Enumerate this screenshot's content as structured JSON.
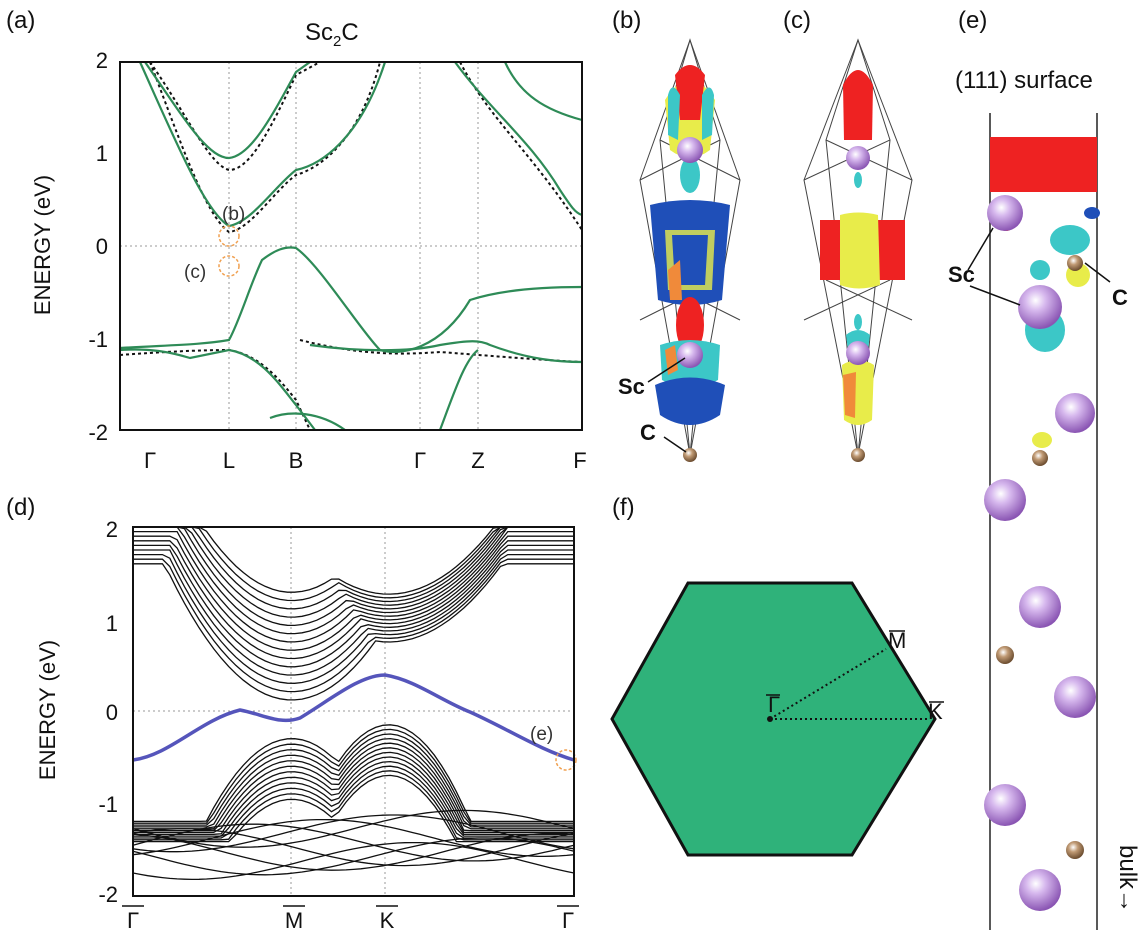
{
  "figure": {
    "panel_labels": [
      "(a)",
      "(b)",
      "(c)",
      "(d)",
      "(e)",
      "(f)"
    ]
  },
  "panel_a": {
    "title_main": "Sc",
    "title_sub": "2",
    "title_end": "C",
    "ylabel": "ENERGY (eV)",
    "yticks": [
      "2",
      "1",
      "0",
      "-1",
      "-2"
    ],
    "xticks": [
      "Γ",
      "L",
      "B",
      "Γ",
      "Z",
      "F"
    ],
    "annotation_b": "(b)",
    "annotation_c": "(c)"
  },
  "panel_b": {
    "atom_sc": "Sc",
    "atom_c": "C"
  },
  "panel_d": {
    "ylabel": "ENERGY (eV)",
    "yticks": [
      "2",
      "1",
      "0",
      "-1",
      "-2"
    ],
    "xticks": [
      "Γ",
      "M",
      "K",
      "Γ"
    ],
    "annotation_e": "(e)"
  },
  "panel_e": {
    "title": "(111) surface",
    "atom_sc": "Sc",
    "atom_c": "C",
    "bulk_label": "bulk→"
  },
  "panel_f": {
    "points": [
      "Γ",
      "M",
      "K"
    ]
  },
  "colors": {
    "green_band": "#2e8b57",
    "surface_band": "#5555bb",
    "bz_fill": "#2fb27a",
    "sc_atom": "#b58ad6",
    "c_atom": "#9a7350",
    "iso_red": "#ee2222",
    "iso_blue": "#1f4fb8",
    "iso_cyan": "#3cc7c7",
    "iso_yellow": "#e8ec4a"
  },
  "chart_data": [
    {
      "type": "line",
      "panel": "a",
      "title": "Sc2C",
      "ylabel": "ENERGY (eV)",
      "ylim": [
        -2,
        2
      ],
      "x_ticks": [
        "Γ",
        "L",
        "B",
        "Γ",
        "Z",
        "F"
      ],
      "x": [
        0,
        1,
        2,
        3,
        4,
        5,
        6,
        7,
        8,
        9,
        10
      ],
      "series": [
        {
          "values": [
            1.9,
            1.2,
            0.95,
            1.3,
            1.9,
            2.0,
            2.0,
            2.0,
            1.9,
            1.1,
            0.3
          ]
        },
        {
          "values": [
            1.1,
            0.45,
            0.15,
            0.55,
            0.8,
            1.2,
            1.9,
            2.0,
            2.0,
            1.4,
            1.3
          ]
        },
        {
          "values": [
            -1.15,
            -0.9,
            -0.18,
            -0.02,
            -0.8,
            -1.15,
            -1.15,
            -1.1,
            -0.8,
            -0.5,
            -0.45
          ]
        },
        {
          "values": [
            -1.2,
            -1.15,
            -1.4,
            -1.9,
            -2.0,
            -1.5,
            -1.2,
            -1.15,
            -1.2,
            -1.25,
            -1.3
          ]
        }
      ]
    },
    {
      "type": "line",
      "panel": "d",
      "ylabel": "ENERGY (eV)",
      "ylim": [
        -2,
        2
      ],
      "x_ticks": [
        "Γ",
        "M",
        "K",
        "Γ"
      ],
      "x": [
        0,
        1,
        2,
        3,
        4,
        5,
        6,
        7,
        8,
        9,
        10
      ],
      "series": [
        {
          "values": [
            -0.52,
            -0.4,
            -0.1,
            0.0,
            -0.1,
            0.15,
            0.38,
            0.36,
            0.05,
            -0.2,
            -0.52
          ]
        },
        {
          "values": [
            -0.45,
            -0.4,
            -0.3,
            -0.25,
            -0.35,
            -0.25,
            -0.15,
            -0.25,
            -0.4,
            -0.45,
            -0.5
          ]
        },
        {
          "values": [
            1.5,
            1.2,
            0.4,
            0.08,
            0.7,
            0.8,
            0.75,
            1.2,
            1.5,
            1.6,
            1.6
          ]
        }
      ]
    }
  ]
}
